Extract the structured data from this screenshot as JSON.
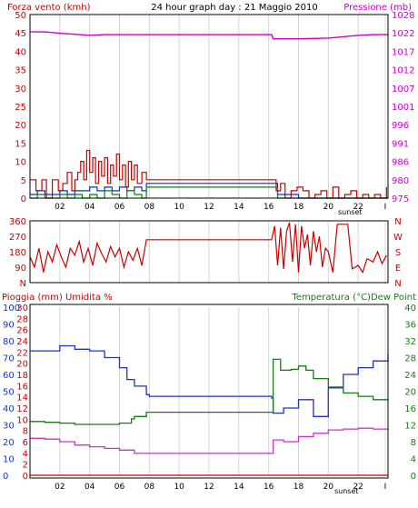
{
  "colors": {
    "wind": "#cc0000",
    "wind_avg": "#0033cc",
    "wind_min": "#008800",
    "pressure": "#cc00cc",
    "direction": "#cc0000",
    "rain": "#cc0000",
    "humidity": "#1a36c6",
    "temperature": "#1a7a1a",
    "dewpoint": "#cc33cc",
    "grid": "#d4d4d4",
    "frame": "#000000",
    "left_axis_1": "#cc0000",
    "left_axis_3": "#1a36c6"
  },
  "header": {
    "title": "24 hour graph day : 21 Maggio 2010"
  },
  "chart_data": [
    {
      "type": "line",
      "title": "24 hour graph day : 21 Maggio 2010",
      "ylabel": "Forza vento (kmh)",
      "y2label": "Pressione (mb)",
      "ylim": [
        0,
        50
      ],
      "y2lim": [
        975,
        1028
      ],
      "yticks": [
        "0",
        "5",
        "10",
        "15",
        "20",
        "25",
        "30",
        "35",
        "40",
        "45",
        "50"
      ],
      "y2ticks": [
        "975",
        "980",
        "986",
        "991",
        "996",
        "1001",
        "1007",
        "1012",
        "1017",
        "1022",
        "1028"
      ],
      "xticks": [
        "02",
        "04",
        "06",
        "08",
        "10",
        "12",
        "14",
        "16",
        "18",
        "20",
        "22",
        "I"
      ],
      "annotation": "sunset",
      "x_range": [
        0,
        24
      ],
      "series": [
        {
          "role": "wind_gust",
          "x": [
            0,
            0.4,
            0.8,
            1.1,
            1.5,
            1.9,
            2.2,
            2.5,
            2.8,
            3.0,
            3.2,
            3.4,
            3.6,
            3.8,
            4.0,
            4.2,
            4.4,
            4.6,
            4.8,
            5.0,
            5.2,
            5.4,
            5.6,
            5.8,
            6.0,
            6.2,
            6.4,
            6.6,
            6.8,
            7.0,
            7.2,
            7.5,
            7.8,
            16.2,
            16.5,
            16.8,
            17.1,
            17.5,
            17.9,
            18.3,
            18.7,
            19.1,
            19.5,
            19.9,
            20.3,
            20.7,
            21.1,
            21.5,
            21.9,
            22.3,
            22.7,
            23.1,
            23.5,
            23.9
          ],
          "values": [
            5,
            2,
            5,
            0,
            5,
            2,
            4,
            7,
            2,
            5,
            7,
            10,
            5,
            13,
            7,
            11,
            4,
            10,
            6,
            11,
            4,
            9,
            6,
            12,
            5,
            9,
            3,
            10,
            5,
            9,
            4,
            7,
            5,
            5,
            2,
            4,
            0,
            2,
            3,
            2,
            0,
            1,
            2,
            0,
            3,
            0,
            1,
            2,
            0,
            1,
            0,
            1,
            0,
            3
          ]
        },
        {
          "role": "wind_average",
          "x": [
            0,
            0.5,
            1.0,
            1.5,
            2.0,
            2.5,
            3.0,
            3.5,
            4.0,
            4.5,
            5.0,
            5.5,
            6.0,
            6.5,
            7.0,
            7.5,
            7.8,
            16.2,
            16.6,
            17.0,
            17.5,
            18.0,
            18.5,
            19.0,
            20.0,
            21.0,
            22.0,
            23.0,
            24.0
          ],
          "values": [
            1,
            2,
            1,
            1,
            2,
            1,
            2,
            2,
            3,
            2,
            3,
            2,
            3,
            2,
            3,
            2,
            4,
            4,
            1,
            1,
            1,
            0,
            0,
            0,
            0,
            0,
            0,
            0,
            0
          ]
        },
        {
          "role": "wind_minimum",
          "x": [
            0,
            0.5,
            1.0,
            1.5,
            2.0,
            2.5,
            3.0,
            3.5,
            4.0,
            4.5,
            5.0,
            5.5,
            6.0,
            6.5,
            7.0,
            7.5,
            7.8,
            16.2,
            16.6,
            17.0,
            18.0,
            20.0,
            22.0,
            24.0
          ],
          "values": [
            0,
            1,
            0,
            0,
            1,
            0,
            1,
            0,
            1,
            0,
            2,
            1,
            0,
            2,
            1,
            0,
            3,
            3,
            0,
            0,
            0,
            0,
            0,
            0
          ]
        },
        {
          "role": "pressure",
          "axis": "right",
          "x": [
            0,
            1,
            2,
            3,
            4,
            5,
            6,
            7,
            8,
            10,
            12,
            14,
            16.2,
            16.3,
            18,
            20,
            21,
            22,
            23,
            24
          ],
          "values": [
            1023.0,
            1023.0,
            1022.6,
            1022.3,
            1022.0,
            1022.2,
            1022.2,
            1022.2,
            1022.2,
            1022.2,
            1022.2,
            1022.2,
            1022.2,
            1021.0,
            1021.0,
            1021.2,
            1021.6,
            1022.0,
            1022.2,
            1022.2
          ]
        }
      ]
    },
    {
      "type": "line",
      "ylabel": "",
      "ylim": [
        0,
        360
      ],
      "yticks": [
        "N",
        "90",
        "180",
        "270",
        "360"
      ],
      "y2ticks": [
        "N",
        "E",
        "S",
        "W",
        "N"
      ],
      "x_range": [
        0,
        24
      ],
      "series": [
        {
          "role": "wind_direction",
          "x": [
            0,
            0.3,
            0.6,
            0.9,
            1.2,
            1.5,
            1.8,
            2.1,
            2.4,
            2.7,
            3.0,
            3.3,
            3.6,
            3.9,
            4.2,
            4.5,
            4.8,
            5.1,
            5.4,
            5.7,
            6.0,
            6.3,
            6.6,
            6.9,
            7.2,
            7.5,
            7.8,
            16.2,
            16.4,
            16.6,
            16.8,
            17.0,
            17.2,
            17.4,
            17.6,
            17.8,
            18.0,
            18.2,
            18.4,
            18.6,
            18.8,
            19.0,
            19.2,
            19.4,
            19.6,
            19.8,
            20.0,
            20.3,
            20.6,
            21.0,
            21.3,
            21.6,
            22.0,
            22.3,
            22.6,
            23.0,
            23.3,
            23.6,
            23.9
          ],
          "values": [
            150,
            90,
            200,
            60,
            180,
            120,
            220,
            150,
            90,
            200,
            160,
            240,
            120,
            200,
            100,
            230,
            170,
            120,
            210,
            150,
            200,
            90,
            180,
            130,
            200,
            100,
            250,
            250,
            330,
            100,
            320,
            80,
            300,
            350,
            120,
            340,
            60,
            330,
            200,
            280,
            100,
            300,
            180,
            270,
            90,
            200,
            180,
            60,
            340,
            340,
            340,
            80,
            100,
            60,
            140,
            120,
            180,
            110,
            160
          ]
        }
      ]
    },
    {
      "type": "line",
      "ylabel": "Pioggia (mm)  Umidita %",
      "y2label": "Temperatura (°C)Dew Point",
      "ylim": [
        0,
        100
      ],
      "y2lim": [
        0,
        40
      ],
      "rain_ticks": [
        "0",
        "2",
        "4",
        "6",
        "8",
        "10",
        "12",
        "14",
        "16",
        "18",
        "20",
        "22",
        "24",
        "26",
        "28",
        "30"
      ],
      "humidity_ticks": [
        "0",
        "10",
        "20",
        "30",
        "40",
        "50",
        "60",
        "70",
        "80",
        "90",
        "100"
      ],
      "y2ticks": [
        "0",
        "4",
        "8",
        "12",
        "16",
        "20",
        "24",
        "28",
        "32",
        "36",
        "40"
      ],
      "xticks": [
        "02",
        "04",
        "06",
        "08",
        "10",
        "12",
        "14",
        "16",
        "18",
        "20",
        "22",
        "I"
      ],
      "annotation": "sunset",
      "x_range": [
        0,
        24
      ],
      "series": [
        {
          "role": "humidity",
          "x": [
            0,
            1,
            2,
            3,
            4,
            5,
            6,
            6.5,
            7,
            7.8,
            8,
            10,
            12,
            14,
            16.2,
            16.3,
            17,
            18,
            19,
            20,
            21,
            22,
            23,
            24
          ],
          "values": [
            74,
            74,
            77,
            75,
            74,
            70,
            64,
            57,
            53,
            48,
            47,
            47,
            47,
            47,
            46,
            37,
            40,
            45,
            35,
            52,
            60,
            64,
            68,
            72
          ]
        },
        {
          "role": "temperature",
          "axis": "right",
          "x": [
            0,
            1,
            2,
            3,
            4,
            5,
            6,
            6.8,
            7.0,
            7.8,
            8,
            10,
            12,
            14,
            16.2,
            16.3,
            16.8,
            17.5,
            18.0,
            18.5,
            19.0,
            20.0,
            21.0,
            22.0,
            23.0,
            24.0
          ],
          "values": [
            12.8,
            12.6,
            12.4,
            12.1,
            12.1,
            12.1,
            12.4,
            13.4,
            14.0,
            15.0,
            15.0,
            15.0,
            15.0,
            15.0,
            15.0,
            27.6,
            25.0,
            25.2,
            26.0,
            25.0,
            23.0,
            21.0,
            19.6,
            18.8,
            18.0,
            17.8
          ]
        },
        {
          "role": "dew_point",
          "axis": "right",
          "x": [
            0,
            1,
            2,
            3,
            4,
            5,
            6,
            7,
            8,
            10,
            12,
            14,
            16.2,
            16.3,
            17,
            18,
            19,
            20,
            21,
            22,
            23,
            24
          ],
          "values": [
            8.8,
            8.6,
            8.0,
            7.2,
            6.8,
            6.4,
            6.0,
            5.2,
            5.2,
            5.2,
            5.2,
            5.2,
            5.2,
            8.4,
            8.0,
            9.2,
            10.0,
            10.8,
            11.0,
            11.2,
            11.0,
            10.8
          ]
        },
        {
          "role": "rain",
          "x": [
            0,
            24
          ],
          "values": [
            0,
            0
          ]
        }
      ]
    }
  ]
}
